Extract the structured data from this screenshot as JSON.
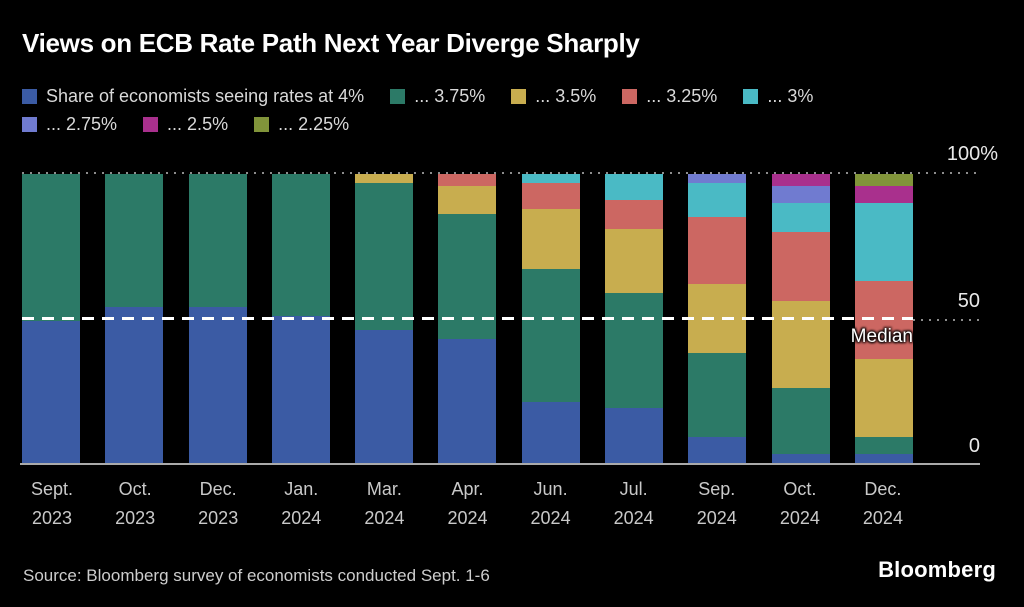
{
  "title": "Views on ECB Rate Path Next Year Diverge Sharply",
  "footer": {
    "source": "Source: Bloomberg survey of economists conducted Sept. 1-6",
    "brand": "Bloomberg"
  },
  "chart_data": {
    "type": "bar",
    "subtype": "stacked-100-percent",
    "title": "Views on ECB Rate Path Next Year Diverge Sharply",
    "ylabel": "",
    "xlabel": "",
    "ylim": [
      0,
      100
    ],
    "grid": "dotted horizontal gridlines at 50 and 100",
    "legend_position": "top",
    "median_label": "Median",
    "median_value": 50,
    "yticks": [
      {
        "label": "100%",
        "value": 100
      },
      {
        "label": "50",
        "value": 50
      },
      {
        "label": "0",
        "value": 0
      }
    ],
    "categories": [
      {
        "month": "Sept.",
        "year": "2023"
      },
      {
        "month": "Oct.",
        "year": "2023"
      },
      {
        "month": "Dec.",
        "year": "2023"
      },
      {
        "month": "Jan.",
        "year": "2024"
      },
      {
        "month": "Mar.",
        "year": "2024"
      },
      {
        "month": "Apr.",
        "year": "2024"
      },
      {
        "month": "Jun.",
        "year": "2024"
      },
      {
        "month": "Jul.",
        "year": "2024"
      },
      {
        "month": "Sep.",
        "year": "2024"
      },
      {
        "month": "Oct.",
        "year": "2024"
      },
      {
        "month": "Dec.",
        "year": "2024"
      }
    ],
    "series": [
      {
        "name": "Share of economists seeing rates at 4%",
        "color": "#3b5ba4",
        "values": [
          49,
          54,
          54,
          51,
          46,
          43,
          21,
          19,
          9,
          3,
          3
        ]
      },
      {
        "name": "... 3.75%",
        "color": "#2c7a67",
        "values": [
          51,
          46,
          46,
          49,
          51,
          43,
          46,
          40,
          29,
          23,
          6
        ]
      },
      {
        "name": "... 3.5%",
        "color": "#c8ad4f",
        "values": [
          0,
          0,
          0,
          0,
          3,
          10,
          21,
          22,
          24,
          30,
          27
        ]
      },
      {
        "name": "... 3.25%",
        "color": "#cc6762",
        "values": [
          0,
          0,
          0,
          0,
          0,
          4,
          9,
          10,
          23,
          24,
          27
        ]
      },
      {
        "name": "... 3%",
        "color": "#4abac5",
        "values": [
          0,
          0,
          0,
          0,
          0,
          0,
          3,
          9,
          12,
          10,
          27
        ]
      },
      {
        "name": "... 2.75%",
        "color": "#707bd0",
        "values": [
          0,
          0,
          0,
          0,
          0,
          0,
          0,
          0,
          3,
          6,
          0
        ]
      },
      {
        "name": "... 2.5%",
        "color": "#a9308d",
        "values": [
          0,
          0,
          0,
          0,
          0,
          0,
          0,
          0,
          0,
          4,
          6
        ]
      },
      {
        "name": "... 2.25%",
        "color": "#81943a",
        "values": [
          0,
          0,
          0,
          0,
          0,
          0,
          0,
          0,
          0,
          0,
          4
        ]
      }
    ]
  }
}
